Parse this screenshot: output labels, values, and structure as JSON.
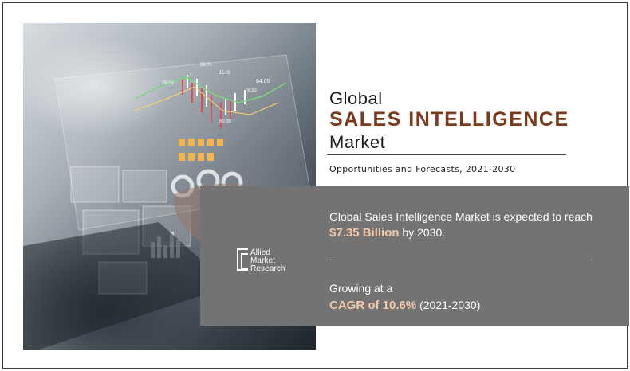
{
  "photo": {
    "icon": "laptop-analytics-photo",
    "chart_labels": [
      "98.71",
      "95.06",
      "84.05",
      "78.92",
      "60.39",
      "79.02"
    ]
  },
  "heading": {
    "line1": "Global",
    "line2": "SALES INTELLIGENCE",
    "line3": "Market",
    "subtitle": "Opportunities and Forecasts, 2021-2030"
  },
  "logo": {
    "line1": "Allied",
    "line2": "Market",
    "line3": "Research"
  },
  "stats": {
    "market_prefix": "Global Sales Intelligence Market is expected to reach ",
    "market_value": "$7.35 Billion",
    "market_suffix": " by 2030.",
    "growth_prefix": "Growing at a",
    "cagr": "CAGR of 10.6%",
    "cagr_period": " (2021-2030)"
  },
  "colors": {
    "accent": "#7a3a1c",
    "highlight": "#f4c7a7",
    "panel": "#737373"
  }
}
